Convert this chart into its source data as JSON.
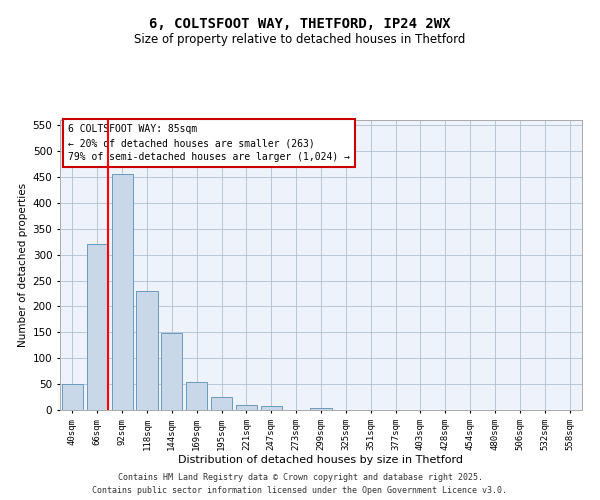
{
  "title": "6, COLTSFOOT WAY, THETFORD, IP24 2WX",
  "subtitle": "Size of property relative to detached houses in Thetford",
  "xlabel": "Distribution of detached houses by size in Thetford",
  "ylabel": "Number of detached properties",
  "bar_color": "#c8d8e8",
  "bar_edge_color": "#6a9abf",
  "background_color": "#eef2fa",
  "grid_color": "#b0bfd0",
  "categories": [
    "40sqm",
    "66sqm",
    "92sqm",
    "118sqm",
    "144sqm",
    "169sqm",
    "195sqm",
    "221sqm",
    "247sqm",
    "273sqm",
    "299sqm",
    "325sqm",
    "351sqm",
    "377sqm",
    "403sqm",
    "428sqm",
    "454sqm",
    "480sqm",
    "506sqm",
    "532sqm",
    "558sqm"
  ],
  "values": [
    50,
    320,
    455,
    230,
    148,
    55,
    25,
    9,
    8,
    0,
    4,
    0,
    0,
    0,
    0,
    0,
    0,
    0,
    0,
    0,
    0
  ],
  "ylim": [
    0,
    560
  ],
  "yticks": [
    0,
    50,
    100,
    150,
    200,
    250,
    300,
    350,
    400,
    450,
    500,
    550
  ],
  "annotation_title": "6 COLTSFOOT WAY: 85sqm",
  "annotation_line1": "← 20% of detached houses are smaller (263)",
  "annotation_line2": "79% of semi-detached houses are larger (1,024) →",
  "annotation_box_color": "#cc0000",
  "red_line_x": 1.45,
  "footer_line1": "Contains HM Land Registry data © Crown copyright and database right 2025.",
  "footer_line2": "Contains public sector information licensed under the Open Government Licence v3.0."
}
